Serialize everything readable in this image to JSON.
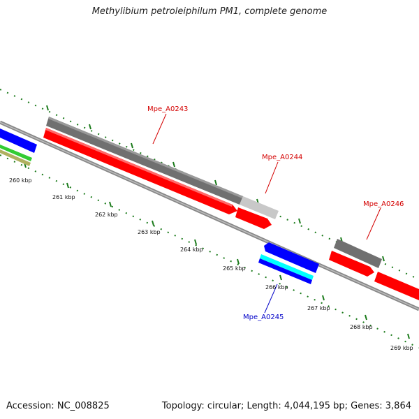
{
  "title": "Methylibium petroleiphilum PM1, complete genome",
  "footer": {
    "accession": "Accession: NC_008825",
    "summary": "Topology: circular; Length: 4,044,195 bp; Genes: 3,864"
  },
  "ticks": [
    "260 kbp",
    "261 kbp",
    "262 kbp",
    "263 kbp",
    "264 kbp",
    "265 kbp",
    "266 kbp",
    "267 kbp",
    "268 kbp",
    "269 kbp"
  ],
  "gene_labels": [
    {
      "text": "Mpe_A0243",
      "color": "#d40000"
    },
    {
      "text": "Mpe_A0244",
      "color": "#d40000"
    },
    {
      "text": "Mpe_A0246",
      "color": "#d40000"
    },
    {
      "text": "Mpe_A0245",
      "color": "#0000c8"
    }
  ],
  "colors": {
    "cds": "#ff0000",
    "gene": "#707070",
    "gene_light": "#c8c8c8",
    "minus_strand": "#0000ff",
    "cyan": "#00ffff",
    "tick": "#1a7a1a",
    "backbone": "#888888",
    "green": "#33cc33",
    "olive": "#b0b060"
  }
}
